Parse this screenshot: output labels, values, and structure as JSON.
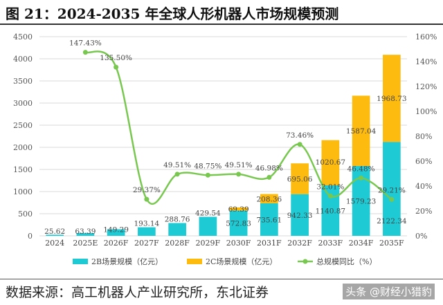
{
  "title": "图 21：2024-2035 年全球人形机器人市场规模预测",
  "source": "数据来源：高工机器人产业研究所，东北证券",
  "watermark": "头条 @财经小猎豹",
  "colors": {
    "b2b": "#1ECBD4",
    "b2c": "#FDBB0F",
    "yoy": "#78C850",
    "grid": "#D9D9D9"
  },
  "chart_data": {
    "type": "bar",
    "stacked": true,
    "categories": [
      "2024",
      "2025E",
      "2026F",
      "2027F",
      "2028F",
      "2029F",
      "2030F",
      "2031F",
      "2032F",
      "2033F",
      "2034F",
      "2035F"
    ],
    "series": [
      {
        "name": "2B场景规模（亿元）",
        "type": "bar",
        "values": [
          25.62,
          63.39,
          149.29,
          193.14,
          288.76,
          429.54,
          572.83,
          735.61,
          942.33,
          1140.87,
          1579.23,
          2122.34
        ]
      },
      {
        "name": "2C场景规模（亿元）",
        "type": "bar",
        "values": [
          null,
          null,
          null,
          null,
          null,
          null,
          69.39,
          208.36,
          695.06,
          1020.67,
          1587.04,
          1968.73
        ]
      },
      {
        "name": "总规模同比（%）",
        "type": "line",
        "axis": "right",
        "values": [
          null,
          147.43,
          135.5,
          29.37,
          49.51,
          48.75,
          49.51,
          46.98,
          73.46,
          32.01,
          46.48,
          29.21
        ]
      }
    ],
    "yleft": {
      "ylim": [
        0,
        4500
      ],
      "ticks": [
        "0",
        "500",
        "1000",
        "1500",
        "2000",
        "2500",
        "3000",
        "3500",
        "4000",
        "4500"
      ]
    },
    "yright": {
      "ylim": [
        0,
        160
      ],
      "ticks": [
        "0%",
        "20%",
        "40%",
        "60%",
        "80%",
        "100%",
        "120%",
        "140%",
        "160%"
      ]
    },
    "grid": true,
    "legend": "bottom"
  }
}
